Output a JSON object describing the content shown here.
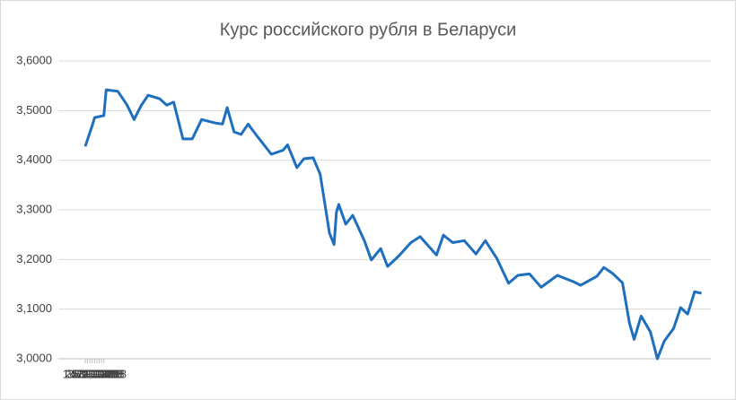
{
  "chart_data": {
    "type": "line",
    "title": "Курс российского рубля в Беларуси",
    "x": [
      "1.1.2018",
      "4.1.2018",
      "5.1.2018",
      "9.1.2018",
      "10.1.2018",
      "15.1.2018",
      "19.1.2018",
      "22.1.2018",
      "25.1.2018",
      "28.1.2018",
      "2.2.2018",
      "5.2.2018",
      "8.2.2018",
      "12.2.2018",
      "16.2.2018",
      "20.2.2018",
      "26.2.2018",
      "1.3.2018",
      "3.3.2018",
      "6.3.2018",
      "9.3.2018",
      "12.3.2018",
      "16.3.2018",
      "22.3.2018",
      "27.3.2018",
      "29.3.2018",
      "2.4.2018",
      "5.4.2018",
      "9.4.2018",
      "12.4.2018",
      "16.4.2018",
      "18.4.2018",
      "19.4.2018",
      "20.4.2018",
      "23.4.2018",
      "26.4.2018",
      "1.5.2018",
      "4.5.2018",
      "8.5.2018",
      "11.5.2018",
      "16.5.2018",
      "21.5.2018",
      "25.5.2018",
      "1.6.2018",
      "4.6.2018",
      "8.6.2018",
      "13.6.2018",
      "18.6.2018",
      "22.6.2018",
      "27.6.2018",
      "2.7.2018",
      "6.7.2018",
      "11.7.2018",
      "16.7.2018",
      "23.7.2018",
      "30.7.2018",
      "2.8.2018",
      "9.8.2018",
      "12.8.2018",
      "16.8.2018",
      "20.8.2018",
      "23.8.2018",
      "25.8.2018",
      "28.8.2018",
      "1.9.2018",
      "4.9.2018",
      "7.9.2018",
      "11.9.2018",
      "14.9.2018",
      "17.9.2018",
      "20.9.2018",
      "23.9.2018"
    ],
    "series": [
      {
        "color": "#1f6fbf",
        "values": [
          3.428,
          3.47,
          3.486,
          3.49,
          3.542,
          3.539,
          3.511,
          3.482,
          3.51,
          3.531,
          3.524,
          3.511,
          3.517,
          3.443,
          3.443,
          3.482,
          3.475,
          3.473,
          3.506,
          3.457,
          3.452,
          3.473,
          3.448,
          3.412,
          3.42,
          3.431,
          3.385,
          3.403,
          3.405,
          3.372,
          3.253,
          3.23,
          3.295,
          3.311,
          3.271,
          3.289,
          3.238,
          3.199,
          3.222,
          3.186,
          3.208,
          3.234,
          3.246,
          3.209,
          3.249,
          3.234,
          3.238,
          3.211,
          3.238,
          3.202,
          3.152,
          3.168,
          3.171,
          3.144,
          3.168,
          3.155,
          3.148,
          3.166,
          3.184,
          3.171,
          3.153,
          3.072,
          3.039,
          3.086,
          3.054,
          3.0,
          3.036,
          3.061,
          3.103,
          3.09,
          3.135,
          3.132
        ]
      }
    ],
    "xlim": [
      "1.1.2018",
      "27.9.2018"
    ],
    "xticks": [
      "1.1.2018",
      "2.1.2018",
      "3.1.2018",
      "4.1.2018",
      "5.1.2018",
      "6.1.2018",
      "7.1.2018",
      "8.1.2018",
      "9.1.2018"
    ],
    "ylim": [
      3.0,
      3.6
    ],
    "yticks": [
      {
        "value": 3.0,
        "label": "3,0000"
      },
      {
        "value": 3.1,
        "label": "3,1000"
      },
      {
        "value": 3.2,
        "label": "3,2000"
      },
      {
        "value": 3.3,
        "label": "3,3000"
      },
      {
        "value": 3.4,
        "label": "3,4000"
      },
      {
        "value": 3.5,
        "label": "3,5000"
      },
      {
        "value": 3.6,
        "label": "3,6000"
      }
    ],
    "grid": true
  }
}
